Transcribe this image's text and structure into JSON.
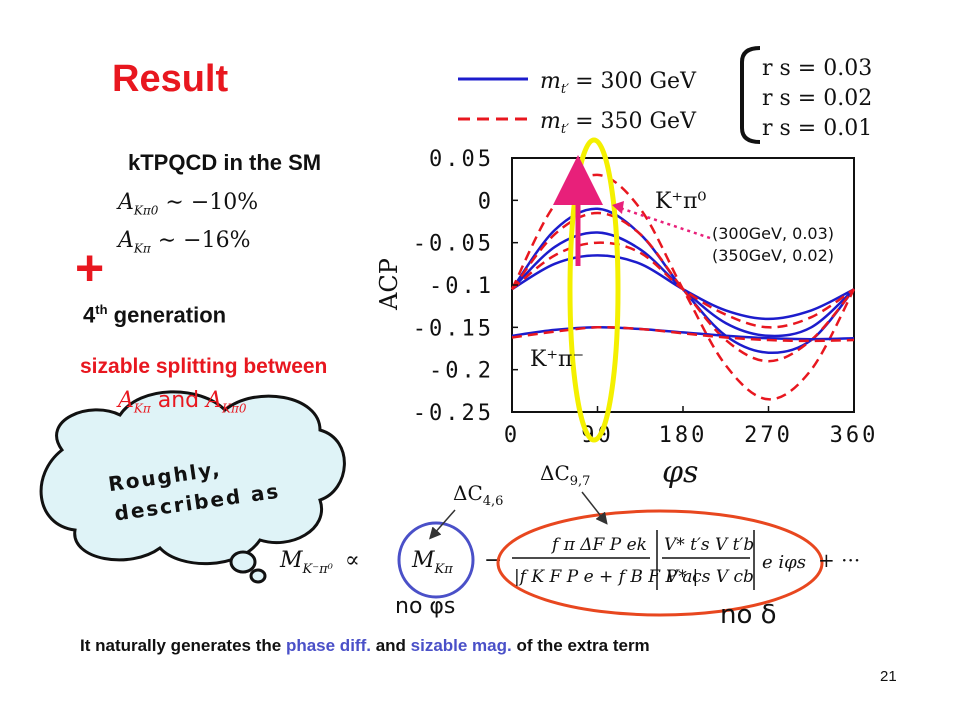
{
  "slide": {
    "title": "Result",
    "sm_label": "kTPQCD in the SM",
    "sm_values": [
      {
        "symbol": "A",
        "subscript": "Kπ0",
        "relation": "∼ −10%"
      },
      {
        "symbol": "A",
        "subscript": "Kπ",
        "relation": "∼ −16%"
      }
    ],
    "plus": "+",
    "gen4_prefix": "4",
    "gen4_sup": "th",
    "gen4_suffix": " generation",
    "splitting": "sizable splitting between",
    "splitting_formula": {
      "a": "A",
      "a_sub": "Kπ",
      "and": "and",
      "b": "A",
      "b_sub": "Kπ0"
    },
    "bubble_text_1": "Roughly,",
    "bubble_text_2": "described as",
    "bottom_note": {
      "part1": "It naturally generates the ",
      "part2": "phase diff.",
      "part3": " and ",
      "part4": "sizable mag.",
      "part5": " of the extra term"
    },
    "page_number": "21",
    "colors": {
      "red": "#e8171f",
      "blue": "#1c1ccc",
      "yellow": "#f4f000",
      "magenta": "#e8207a",
      "circle_blue": "#4a50c8",
      "oval_red": "#e8471f"
    }
  },
  "legend": {
    "line1": "m",
    "line1_sub": "t′",
    "line1_val": "= 300 GeV",
    "line2": "m",
    "line2_sub": "t′",
    "line2_val": "= 350 GeV",
    "rs": [
      "r s = 0.03",
      "r s = 0.02",
      "r s = 0.01"
    ]
  },
  "annotations": {
    "kpi0": "K⁺π⁰",
    "kpi": "K⁺π⁻",
    "point1": "(300GeV, 0.03)",
    "point2": "(350GeV, 0.02)"
  },
  "formula": {
    "lhs": "M",
    "lhs_sub": "K⁻π⁰",
    "prop": "∝",
    "m": "M",
    "m_sub": "Kπ",
    "minus": "−",
    "num": "f π ΔF P ek",
    "den": "|f K F P e + f B F P a|",
    "ckm_num": "V* t′s V t′b",
    "ckm_den": "V* cs V cb",
    "phase": "e iφs",
    "tail": "+ ···",
    "no_phi": "no φs",
    "no_delta": "no δ",
    "dc46": "ΔC",
    "dc46_sub": "4,6",
    "dc97": "ΔC",
    "dc97_sub": "9,7"
  },
  "chart_data": {
    "type": "line",
    "xlabel": "φs",
    "ylabel": "ACP",
    "xlim": [
      0,
      360
    ],
    "ylim": [
      -0.25,
      0.05
    ],
    "xticks": [
      "0",
      "90",
      "180",
      "270",
      "360"
    ],
    "yticks": [
      "0.05",
      "0",
      "-0.05",
      "-0.1",
      "-0.15",
      "-0.2",
      "-0.25"
    ],
    "grid": false,
    "x": [
      0,
      45,
      90,
      135,
      180,
      225,
      270,
      315,
      360
    ],
    "series": [
      {
        "name": "Kπ0 300GeV rs=0.03",
        "style": "solid",
        "color": "blue",
        "values": [
          -0.105,
          -0.035,
          -0.01,
          -0.04,
          -0.105,
          -0.16,
          -0.18,
          -0.165,
          -0.105
        ]
      },
      {
        "name": "Kπ0 300GeV rs=0.02",
        "style": "solid",
        "color": "blue",
        "values": [
          -0.105,
          -0.055,
          -0.038,
          -0.058,
          -0.105,
          -0.145,
          -0.16,
          -0.15,
          -0.105
        ]
      },
      {
        "name": "Kπ0 300GeV rs=0.01",
        "style": "solid",
        "color": "blue",
        "values": [
          -0.105,
          -0.075,
          -0.065,
          -0.075,
          -0.105,
          -0.13,
          -0.14,
          -0.13,
          -0.105
        ]
      },
      {
        "name": "Kπ0 350GeV rs=0.03",
        "style": "dashed",
        "color": "red",
        "values": [
          -0.105,
          -0.005,
          0.03,
          -0.01,
          -0.105,
          -0.195,
          -0.235,
          -0.2,
          -0.105
        ]
      },
      {
        "name": "Kπ0 350GeV rs=0.02",
        "style": "dashed",
        "color": "red",
        "values": [
          -0.105,
          -0.04,
          -0.015,
          -0.04,
          -0.105,
          -0.165,
          -0.19,
          -0.165,
          -0.105
        ]
      },
      {
        "name": "Kπ0 350GeV rs=0.01",
        "style": "dashed",
        "color": "red",
        "values": [
          -0.105,
          -0.065,
          -0.05,
          -0.062,
          -0.105,
          -0.135,
          -0.15,
          -0.138,
          -0.105
        ]
      },
      {
        "name": "Kπ 300GeV",
        "style": "solid",
        "color": "blue",
        "values": [
          -0.16,
          -0.153,
          -0.15,
          -0.152,
          -0.156,
          -0.16,
          -0.163,
          -0.164,
          -0.163
        ]
      },
      {
        "name": "Kπ 350GeV",
        "style": "dashed",
        "color": "red",
        "values": [
          -0.162,
          -0.155,
          -0.15,
          -0.152,
          -0.157,
          -0.162,
          -0.165,
          -0.166,
          -0.165
        ]
      }
    ]
  }
}
